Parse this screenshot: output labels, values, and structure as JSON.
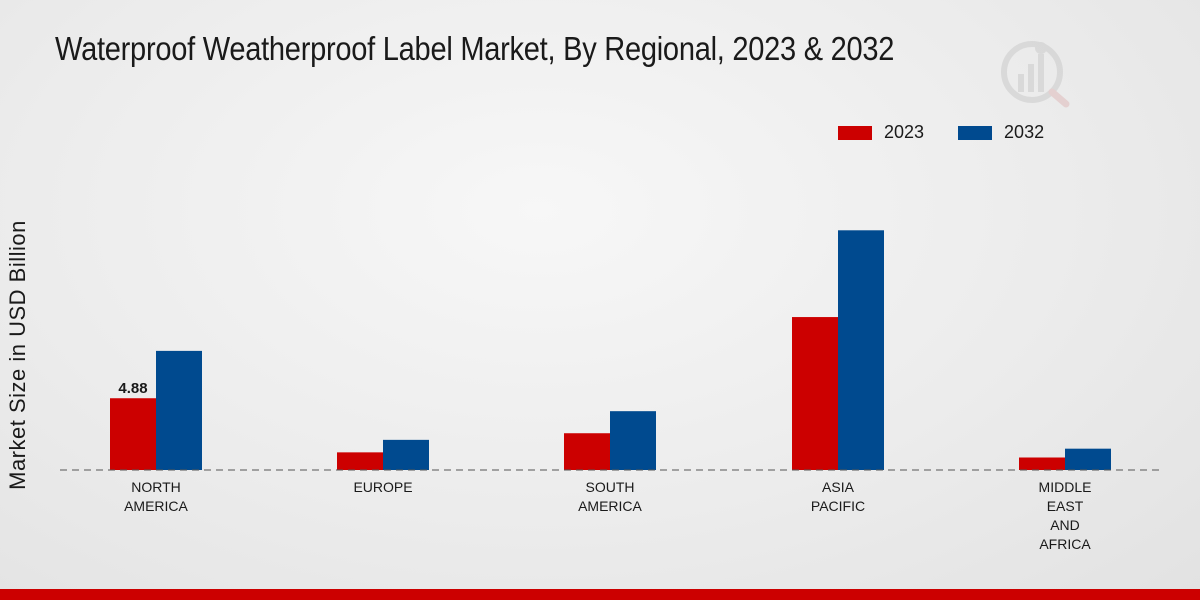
{
  "chart_data": {
    "type": "bar",
    "title": "Waterproof Weatherproof Label Market, By Regional, 2023 & 2032",
    "ylabel": "Market Size in USD Billion",
    "xlabel": "",
    "categories": [
      [
        "NORTH",
        "AMERICA"
      ],
      [
        "EUROPE"
      ],
      [
        "SOUTH",
        "AMERICA"
      ],
      [
        "ASIA",
        "PACIFIC"
      ],
      [
        "MIDDLE",
        "EAST",
        "AND",
        "AFRICA"
      ]
    ],
    "series": [
      {
        "name": "2023",
        "color": "#cc0000",
        "values": [
          4.88,
          1.2,
          2.5,
          10.4,
          0.85
        ],
        "data_labels": [
          "4.88",
          null,
          null,
          null,
          null
        ]
      },
      {
        "name": "2032",
        "color": "#004a8f",
        "values": [
          8.1,
          2.05,
          4.0,
          16.3,
          1.45
        ]
      }
    ],
    "ylim": [
      0,
      23
    ],
    "legend_position": "top-right",
    "grid": false
  }
}
